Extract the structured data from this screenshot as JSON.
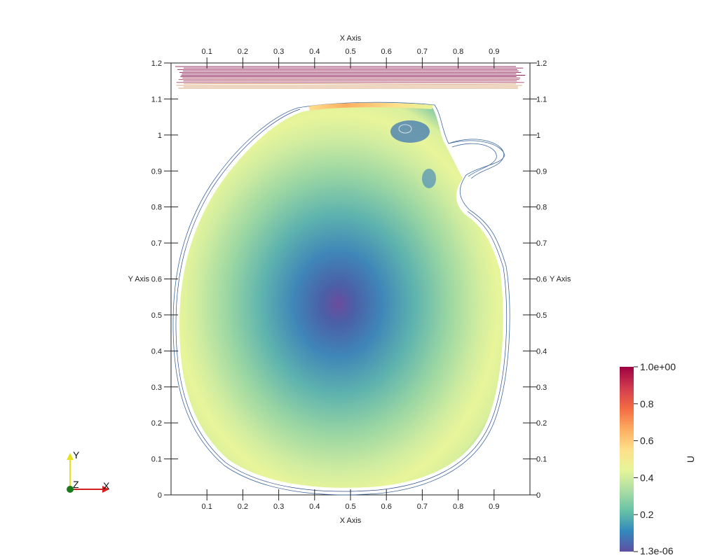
{
  "chart_data": {
    "type": "heatmap",
    "xlabel": "X Axis",
    "ylabel": "Y Axis",
    "xlim": [
      0,
      1
    ],
    "ylim": [
      0,
      1.2
    ],
    "x_ticks": [
      "0.1",
      "0.2",
      "0.3",
      "0.4",
      "0.5",
      "0.6",
      "0.7",
      "0.8",
      "0.9"
    ],
    "y_ticks": [
      "0",
      "0.1",
      "0.2",
      "0.3",
      "0.4",
      "0.5",
      "0.6",
      "0.7",
      "0.8",
      "0.9",
      "1",
      "1.1",
      "1.2"
    ],
    "colorbar": {
      "title": "U",
      "min": 1.3e-06,
      "max": 1.0,
      "min_label": "1.3e-06",
      "max_label": "1.0e+00",
      "tick_values": [
        0.2,
        0.4,
        0.6,
        0.8
      ],
      "tick_labels": [
        "0.2",
        "0.4",
        "0.6",
        "0.8"
      ],
      "colormap": [
        "#5e4fa2",
        "#3288bd",
        "#66c2a5",
        "#abdda4",
        "#e6f598",
        "#fee08b",
        "#fdae61",
        "#f46d43",
        "#d53e4f",
        "#9e0142"
      ]
    },
    "field": {
      "minimum_location": [
        0.48,
        0.53
      ],
      "top_band_y": [
        1.13,
        1.19
      ]
    }
  },
  "orientation": {
    "x_label": "X",
    "y_label": "Y",
    "z_label": "Z",
    "x_color": "#d62020",
    "y_color": "#e8e020",
    "z_color": "#1a7a1a"
  }
}
